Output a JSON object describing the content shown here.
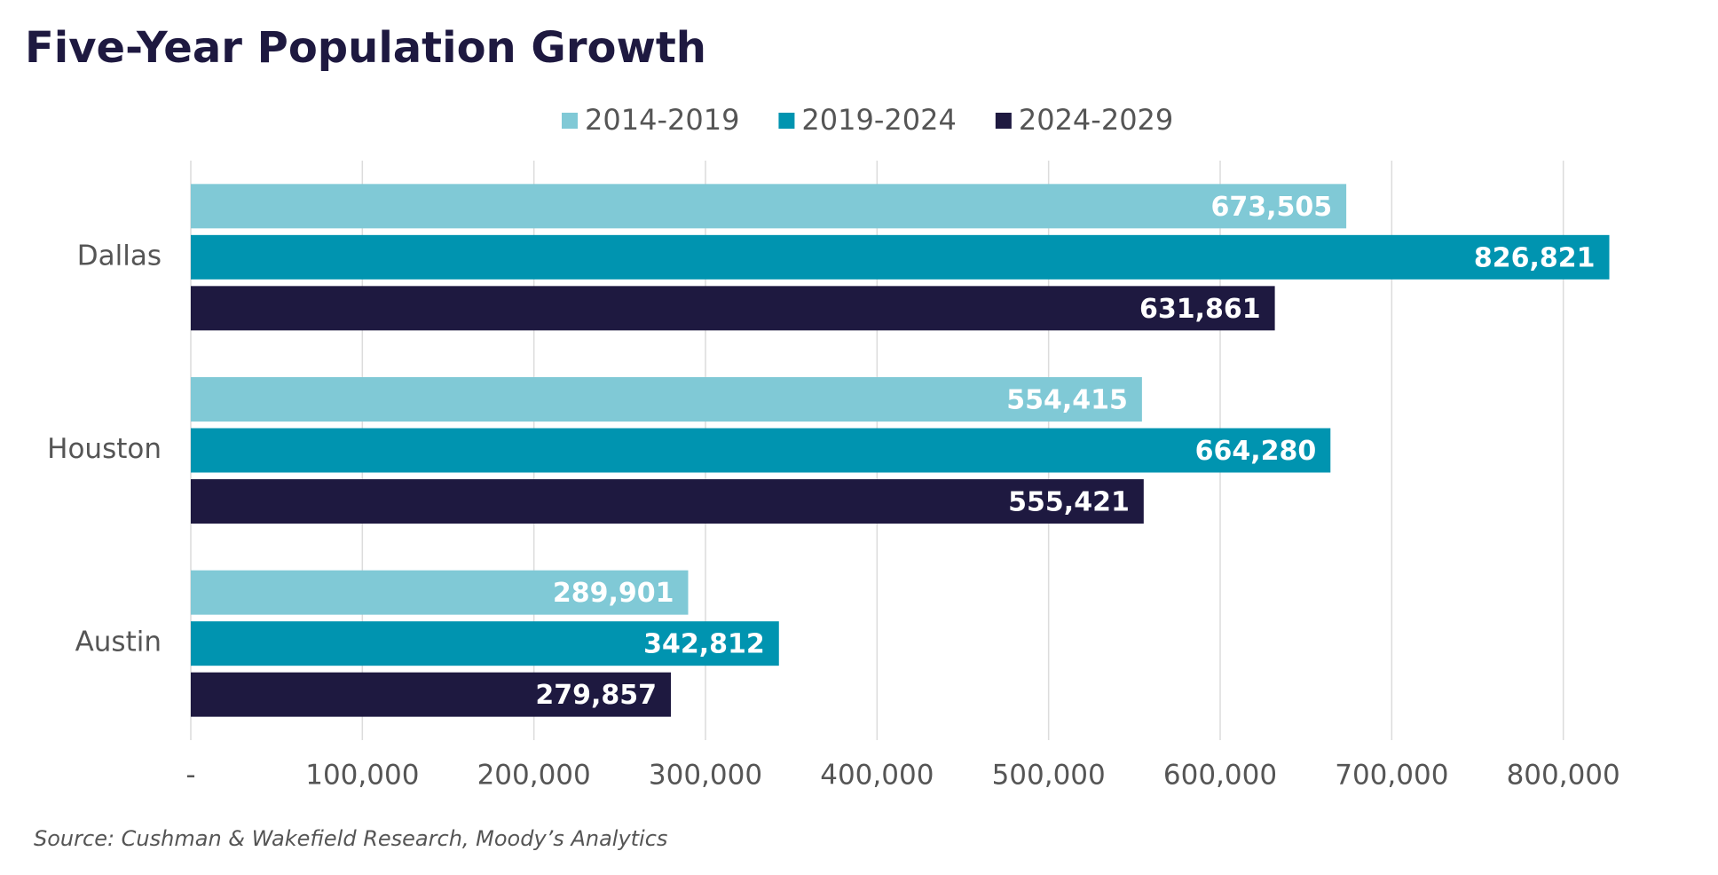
{
  "chart_data": {
    "type": "bar",
    "orientation": "horizontal",
    "title": "Five-Year Population Growth",
    "categories": [
      "Dallas",
      "Houston",
      "Austin"
    ],
    "series": [
      {
        "name": "2014-2019",
        "color": "#80c9d6",
        "values": [
          673505,
          554415,
          289901
        ],
        "value_labels": [
          "673,505",
          "554,415",
          "289,901"
        ]
      },
      {
        "name": "2019-2024",
        "color": "#0094b0",
        "values": [
          826821,
          664280,
          342812
        ],
        "value_labels": [
          "826,821",
          "664,280",
          "342,812"
        ]
      },
      {
        "name": "2024-2029",
        "color": "#1e1940",
        "values": [
          631861,
          555421,
          279857
        ],
        "value_labels": [
          "631,861",
          "555,421",
          "279,857"
        ]
      }
    ],
    "xlim": [
      0,
      840000
    ],
    "xticks": [
      {
        "value": 0,
        "label": "-"
      },
      {
        "value": 100000,
        "label": "100,000"
      },
      {
        "value": 200000,
        "label": "200,000"
      },
      {
        "value": 300000,
        "label": "300,000"
      },
      {
        "value": 400000,
        "label": "400,000"
      },
      {
        "value": 500000,
        "label": "500,000"
      },
      {
        "value": 600000,
        "label": "600,000"
      },
      {
        "value": 700000,
        "label": "700,000"
      },
      {
        "value": 800000,
        "label": "800,000"
      }
    ],
    "grid": true,
    "legend": "top",
    "source": "Source: Cushman & Wakefield Research, Moody’s Analytics"
  }
}
